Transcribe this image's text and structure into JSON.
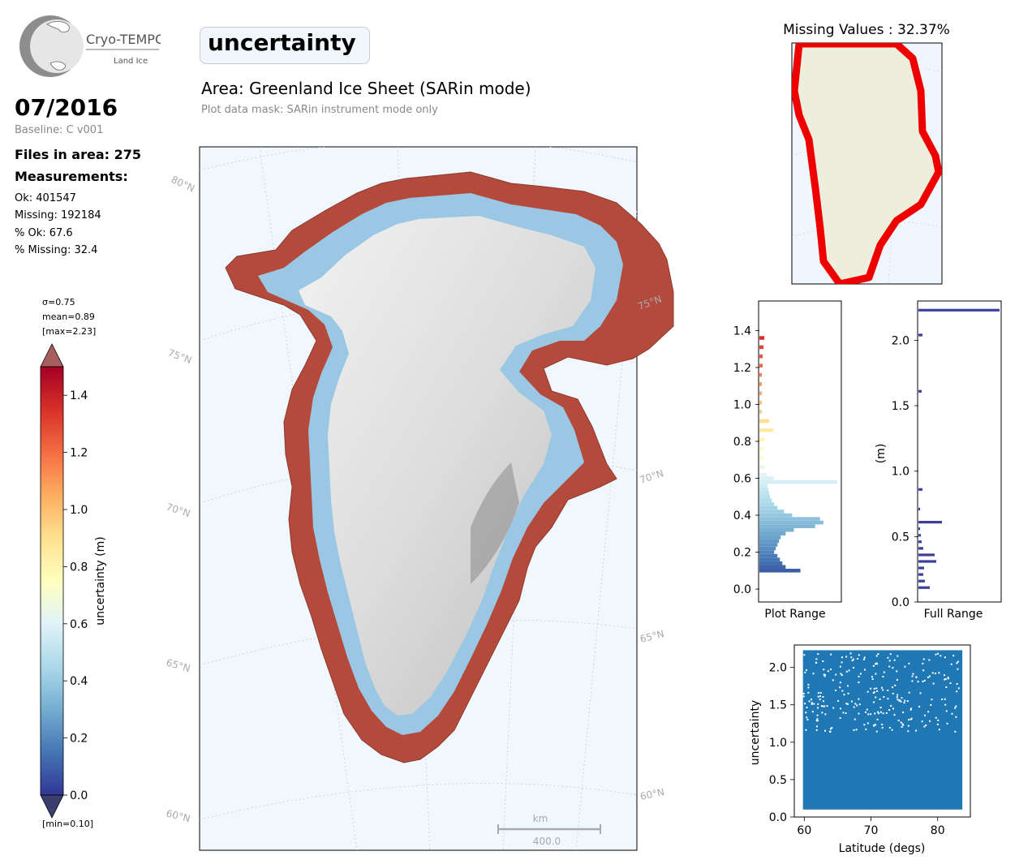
{
  "logo": {
    "name": "Cryo-TEMPO",
    "sub": "Land Ice"
  },
  "header": {
    "date": "07/2016",
    "baseline": "Baseline: C v001",
    "files": "Files in area: 275",
    "measurements_title": "Measurements:",
    "stats": [
      "Ok: 401547",
      "Missing: 192184",
      "% Ok: 67.6",
      "% Missing: 32.4"
    ]
  },
  "title": "uncertainty",
  "area": "Area: Greenland Ice Sheet (SARin mode)",
  "mask": "Plot data mask: SARin instrument mode only",
  "colorbar": {
    "label": "uncertainty (m)",
    "sigma": "σ=0.75",
    "mean": "mean=0.89",
    "max": "[max=2.23]",
    "min": "[min=0.10]",
    "ticks": [
      "0.0",
      "0.2",
      "0.4",
      "0.6",
      "0.8",
      "1.0",
      "1.2",
      "1.4"
    ],
    "colors": [
      "#313695",
      "#4575b4",
      "#74add1",
      "#abd9e9",
      "#e0f3f8",
      "#ffffbf",
      "#fee090",
      "#fdae61",
      "#f46d43",
      "#d73027",
      "#a50026"
    ]
  },
  "map": {
    "lat_labels": [
      "80°N",
      "75°N",
      "75°N",
      "70°N",
      "70°N",
      "65°N",
      "65°N",
      "60°N",
      "60°N"
    ],
    "scalebar_unit": "km",
    "scalebar_value": "400.0"
  },
  "missing_map": {
    "title": "Missing Values : 32.37%"
  },
  "chart_data": [
    {
      "type": "bar",
      "orientation": "horizontal",
      "name": "plot-range-histogram",
      "xlabel": "Plot Range",
      "ylim": [
        -0.07,
        1.56
      ],
      "yticks": [
        "0.0",
        "0.2",
        "0.4",
        "0.6",
        "0.8",
        "1.0",
        "1.2",
        "1.4"
      ],
      "bins": [
        0.09,
        0.11,
        0.13,
        0.15,
        0.17,
        0.19,
        0.21,
        0.23,
        0.25,
        0.27,
        0.29,
        0.31,
        0.33,
        0.35,
        0.37,
        0.39,
        0.41,
        0.43,
        0.45,
        0.47,
        0.49,
        0.51,
        0.53,
        0.55,
        0.57,
        0.59,
        0.61,
        0.65,
        0.7,
        0.75,
        0.8,
        0.85,
        0.9,
        0.95,
        1.0,
        1.05,
        1.1,
        1.15,
        1.2,
        1.25,
        1.3,
        1.35
      ],
      "values": [
        0.5,
        0.32,
        0.28,
        0.25,
        0.22,
        0.18,
        0.2,
        0.22,
        0.24,
        0.26,
        0.32,
        0.42,
        0.68,
        0.78,
        0.74,
        0.4,
        0.3,
        0.22,
        0.18,
        0.15,
        0.13,
        0.12,
        0.11,
        0.1,
        0.95,
        0.18,
        0.09,
        0.06,
        0.05,
        0.05,
        0.06,
        0.17,
        0.12,
        0.03,
        0.03,
        0.03,
        0.03,
        0.03,
        0.04,
        0.04,
        0.05,
        0.06
      ]
    },
    {
      "type": "bar",
      "orientation": "horizontal",
      "name": "full-range-histogram",
      "xlabel": "Full Range",
      "ylabel": "(m)",
      "ylim": [
        0,
        2.3
      ],
      "yticks": [
        "0.0",
        "0.5",
        "1.0",
        "1.5",
        "2.0"
      ],
      "bins": [
        0.1,
        0.15,
        0.2,
        0.25,
        0.3,
        0.35,
        0.4,
        0.45,
        0.5,
        0.55,
        0.6,
        0.7,
        0.85,
        1.6,
        2.03,
        2.22
      ],
      "values": [
        0.14,
        0.08,
        0.06,
        0.07,
        0.22,
        0.2,
        0.06,
        0.04,
        0.03,
        0.02,
        0.29,
        0.02,
        0.05,
        0.04,
        0.05,
        1.0
      ],
      "color": "#3f3f9f"
    },
    {
      "type": "scatter",
      "name": "latitude-scatter",
      "xlabel": "Latitude (degs)",
      "ylabel": "uncertainty",
      "xlim": [
        58.5,
        84.9
      ],
      "ylim": [
        0,
        2.3
      ],
      "xticks": [
        "60",
        "70",
        "80"
      ],
      "yticks": [
        "0.0",
        "0.5",
        "1.0",
        "1.5",
        "2.0"
      ],
      "x_range": [
        59.8,
        83.7
      ],
      "y_range": [
        0.1,
        2.23
      ],
      "color": "#1f77b4"
    }
  ]
}
